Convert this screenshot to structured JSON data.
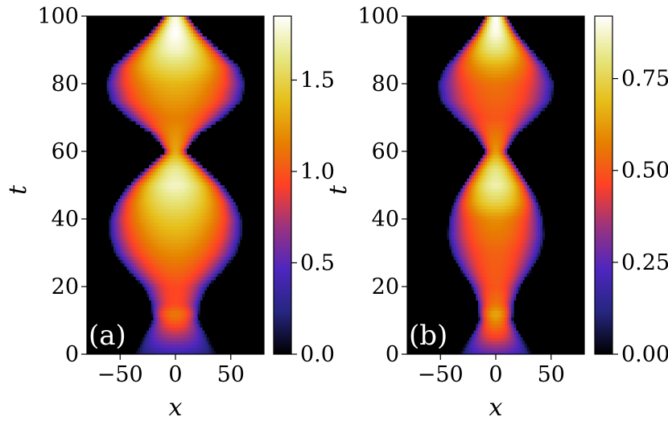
{
  "chart_data": [
    {
      "type": "heatmap",
      "panel_label": "(a)",
      "xlabel": "x",
      "ylabel": "t",
      "xlim": [
        -80,
        80
      ],
      "ylim": [
        0,
        100
      ],
      "xticks": [
        -50,
        0,
        50
      ],
      "xtick_labels": [
        "−50",
        "0",
        "50"
      ],
      "yticks": [
        0,
        20,
        40,
        60,
        80,
        100
      ],
      "ytick_labels": [
        "0",
        "20",
        "40",
        "60",
        "80",
        "100"
      ],
      "colorbar": {
        "range": [
          0,
          1.85
        ],
        "ticks": [
          0.0,
          0.5,
          1.0,
          1.5
        ],
        "tick_labels": [
          "0.0",
          "0.5",
          "1.0",
          "1.5"
        ]
      },
      "envelope_halfwidth": {
        "t": [
          0,
          5,
          10,
          15,
          20,
          25,
          30,
          35,
          40,
          45,
          50,
          55,
          60,
          65,
          70,
          75,
          80,
          85,
          90,
          95,
          100
        ],
        "x": [
          32,
          25,
          18,
          19,
          25,
          38,
          48,
          52,
          52,
          47,
          37,
          23,
          8,
          18,
          38,
          52,
          55,
          50,
          35,
          20,
          9
        ]
      },
      "peak_intensity": {
        "t": [
          0,
          5,
          10,
          12,
          15,
          20,
          30,
          40,
          45,
          50,
          55,
          60,
          70,
          80,
          85,
          90,
          95,
          100
        ],
        "value": [
          0.35,
          0.7,
          1.05,
          1.15,
          0.95,
          0.95,
          1.2,
          1.45,
          1.6,
          1.75,
          1.65,
          1.3,
          1.15,
          1.35,
          1.55,
          1.75,
          1.85,
          1.8
        ]
      }
    },
    {
      "type": "heatmap",
      "panel_label": "(b)",
      "xlabel": "x",
      "ylabel": "t",
      "xlim": [
        -80,
        80
      ],
      "ylim": [
        0,
        100
      ],
      "xticks": [
        -50,
        0,
        50
      ],
      "xtick_labels": [
        "−50",
        "0",
        "50"
      ],
      "yticks": [
        0,
        20,
        40,
        60,
        80,
        100
      ],
      "ytick_labels": [
        "0",
        "20",
        "40",
        "60",
        "80",
        "100"
      ],
      "colorbar": {
        "range": [
          0,
          0.92
        ],
        "ticks": [
          0.0,
          0.25,
          0.5,
          0.75
        ],
        "tick_labels": [
          "0.00",
          "0.25",
          "0.50",
          "0.75"
        ]
      },
      "envelope_halfwidth": {
        "t": [
          0,
          5,
          10,
          15,
          20,
          25,
          30,
          35,
          40,
          45,
          50,
          55,
          60,
          65,
          70,
          75,
          80,
          85,
          90,
          95,
          100
        ],
        "x": [
          28,
          20,
          13,
          14,
          19,
          28,
          35,
          38,
          37,
          33,
          26,
          17,
          8,
          16,
          32,
          44,
          46,
          40,
          28,
          16,
          8
        ]
      },
      "peak_intensity": {
        "t": [
          0,
          5,
          10,
          12,
          15,
          20,
          30,
          40,
          45,
          50,
          55,
          60,
          70,
          80,
          85,
          90,
          95,
          100
        ],
        "value": [
          0.25,
          0.45,
          0.6,
          0.65,
          0.55,
          0.5,
          0.52,
          0.6,
          0.75,
          0.85,
          0.8,
          0.62,
          0.5,
          0.55,
          0.65,
          0.8,
          0.9,
          0.92
        ]
      }
    }
  ],
  "colormap": {
    "name": "CMRmap",
    "stops": [
      "#000000",
      "#262680",
      "#4d26bf",
      "#993380",
      "#ff4026",
      "#e68000",
      "#e6bf1a",
      "#e6e680",
      "#ffffff"
    ]
  }
}
